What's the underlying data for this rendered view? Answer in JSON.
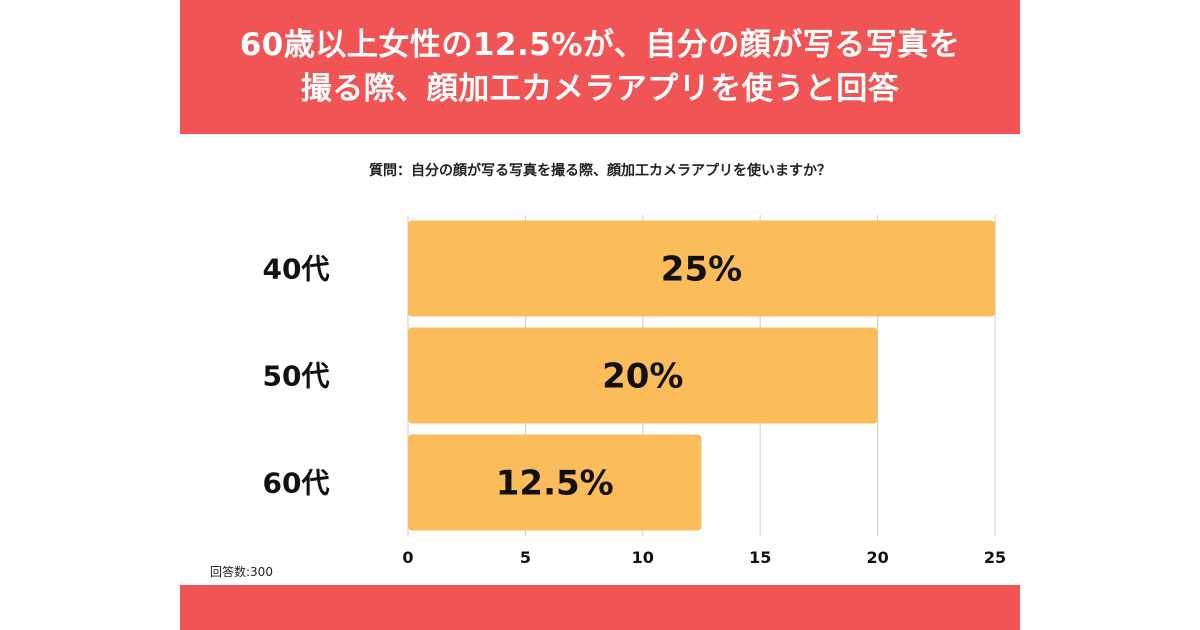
{
  "header": {
    "title_line1": "60歳以上女性の12.5%が、自分の顔が写る写真を",
    "title_line2": "撮る際、顔加工カメラアプリを使うと回答"
  },
  "question": "質問：自分の顔が写る写真を撮る際、顔加工カメラアプリを使いますか？",
  "responses": "回答数:300",
  "colors": {
    "header": "#f05454",
    "bar": "#fbbc5b",
    "grid": "#cccccc",
    "text": "#111111"
  },
  "chart_data": {
    "type": "bar",
    "orientation": "horizontal",
    "categories": [
      "40代",
      "50代",
      "60代"
    ],
    "values": [
      25,
      20,
      12.5
    ],
    "value_labels": [
      "25%",
      "20%",
      "12.5%"
    ],
    "xlim": [
      0,
      25
    ],
    "xticks": [
      "0",
      "5",
      "10",
      "15",
      "20",
      "25"
    ],
    "grid": true
  }
}
